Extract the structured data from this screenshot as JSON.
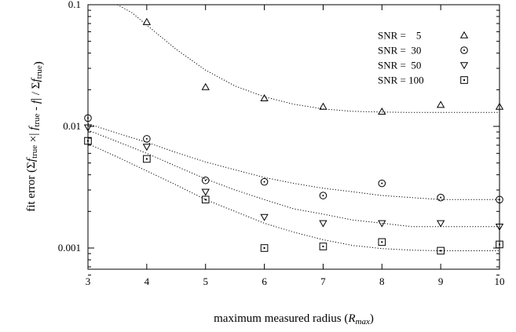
{
  "chart_data": {
    "type": "scatter",
    "title": "",
    "xlabel": "maximum measured radius (",
    "xlabel_var": "R",
    "xlabel_sub": "max",
    "xlabel_end": ")",
    "ylabel_parts": [
      {
        "t": "fit error (Σ",
        "s": ""
      },
      {
        "t": "f",
        "s": "true"
      },
      {
        "t": " ×| ",
        "s": ""
      },
      {
        "t": "f",
        "s": "true"
      },
      {
        "t": " - ",
        "s": ""
      },
      {
        "t": "f",
        "s": ""
      },
      {
        "t": "| / Σ",
        "s": ""
      },
      {
        "t": "f",
        "s": "true"
      },
      {
        "t": ")",
        "s": ""
      }
    ],
    "x_ticks": [
      "3",
      "4",
      "5",
      "6",
      "7",
      "8",
      "9",
      "10"
    ],
    "y_ticks": [
      {
        "value": 0.001,
        "label": "0.001"
      },
      {
        "value": 0.01,
        "label": "0.01"
      },
      {
        "value": 0.1,
        "label": "0.1"
      }
    ],
    "xlim": [
      3,
      10
    ],
    "ylim": [
      0.0006,
      0.1
    ],
    "y_scale": "log",
    "grid": false,
    "legend_position": "top-right",
    "series": [
      {
        "name": "SNR =    5",
        "marker": "triangle-up",
        "x": [
          4,
          5,
          6,
          7,
          8,
          9,
          10
        ],
        "y": [
          0.072,
          0.021,
          0.017,
          0.0145,
          0.0132,
          0.015,
          0.0145
        ],
        "fit": {
          "x": [
            3.5,
            3.75,
            4,
            4.5,
            5,
            5.5,
            6,
            6.5,
            7,
            7.5,
            8,
            8.5,
            9,
            9.5,
            10
          ],
          "y": [
            0.1,
            0.086,
            0.068,
            0.043,
            0.029,
            0.0215,
            0.0175,
            0.0152,
            0.0139,
            0.0133,
            0.0131,
            0.013,
            0.013,
            0.013,
            0.013
          ]
        }
      },
      {
        "name": "SNR =  30",
        "marker": "circle",
        "x": [
          3,
          4,
          5,
          6,
          7,
          8,
          9,
          10
        ],
        "y": [
          0.0117,
          0.0079,
          0.0036,
          0.0035,
          0.0027,
          0.0034,
          0.0026,
          0.0025
        ],
        "fit": {
          "x": [
            3,
            3.5,
            4,
            4.5,
            5,
            5.5,
            6,
            6.5,
            7,
            7.5,
            8,
            8.5,
            9,
            9.5,
            10
          ],
          "y": [
            0.0105,
            0.0088,
            0.0074,
            0.0061,
            0.0051,
            0.0044,
            0.0038,
            0.0034,
            0.0031,
            0.0029,
            0.0027,
            0.0026,
            0.0025,
            0.0025,
            0.0025
          ]
        }
      },
      {
        "name": "SNR =  50",
        "marker": "triangle-down",
        "x": [
          3,
          4,
          5,
          6,
          7,
          8,
          9,
          10
        ],
        "y": [
          0.0098,
          0.0068,
          0.0029,
          0.0018,
          0.0016,
          0.0016,
          0.0016,
          0.0015
        ],
        "fit": {
          "x": [
            3,
            3.5,
            4,
            4.5,
            5,
            5.5,
            6,
            6.5,
            7,
            7.5,
            8,
            8.5,
            9,
            9.5,
            10
          ],
          "y": [
            0.0093,
            0.0075,
            0.006,
            0.0047,
            0.0037,
            0.003,
            0.0025,
            0.0021,
            0.0019,
            0.0017,
            0.0016,
            0.0015,
            0.0015,
            0.0015,
            0.0015
          ]
        }
      },
      {
        "name": "SNR = 100",
        "marker": "square",
        "x": [
          3,
          4,
          5,
          6,
          7,
          8,
          9,
          10
        ],
        "y": [
          0.0076,
          0.0054,
          0.0025,
          0.001,
          0.00103,
          0.00112,
          0.00095,
          0.00107
        ],
        "fit": {
          "x": [
            3,
            3.5,
            4,
            4.5,
            5,
            5.5,
            6,
            6.5,
            7,
            7.5,
            8,
            8.5,
            9,
            9.5,
            10
          ],
          "y": [
            0.0072,
            0.0056,
            0.0043,
            0.0033,
            0.0025,
            0.002,
            0.0016,
            0.00135,
            0.00117,
            0.00105,
            0.00099,
            0.00096,
            0.00095,
            0.00095,
            0.00095
          ]
        }
      }
    ]
  }
}
